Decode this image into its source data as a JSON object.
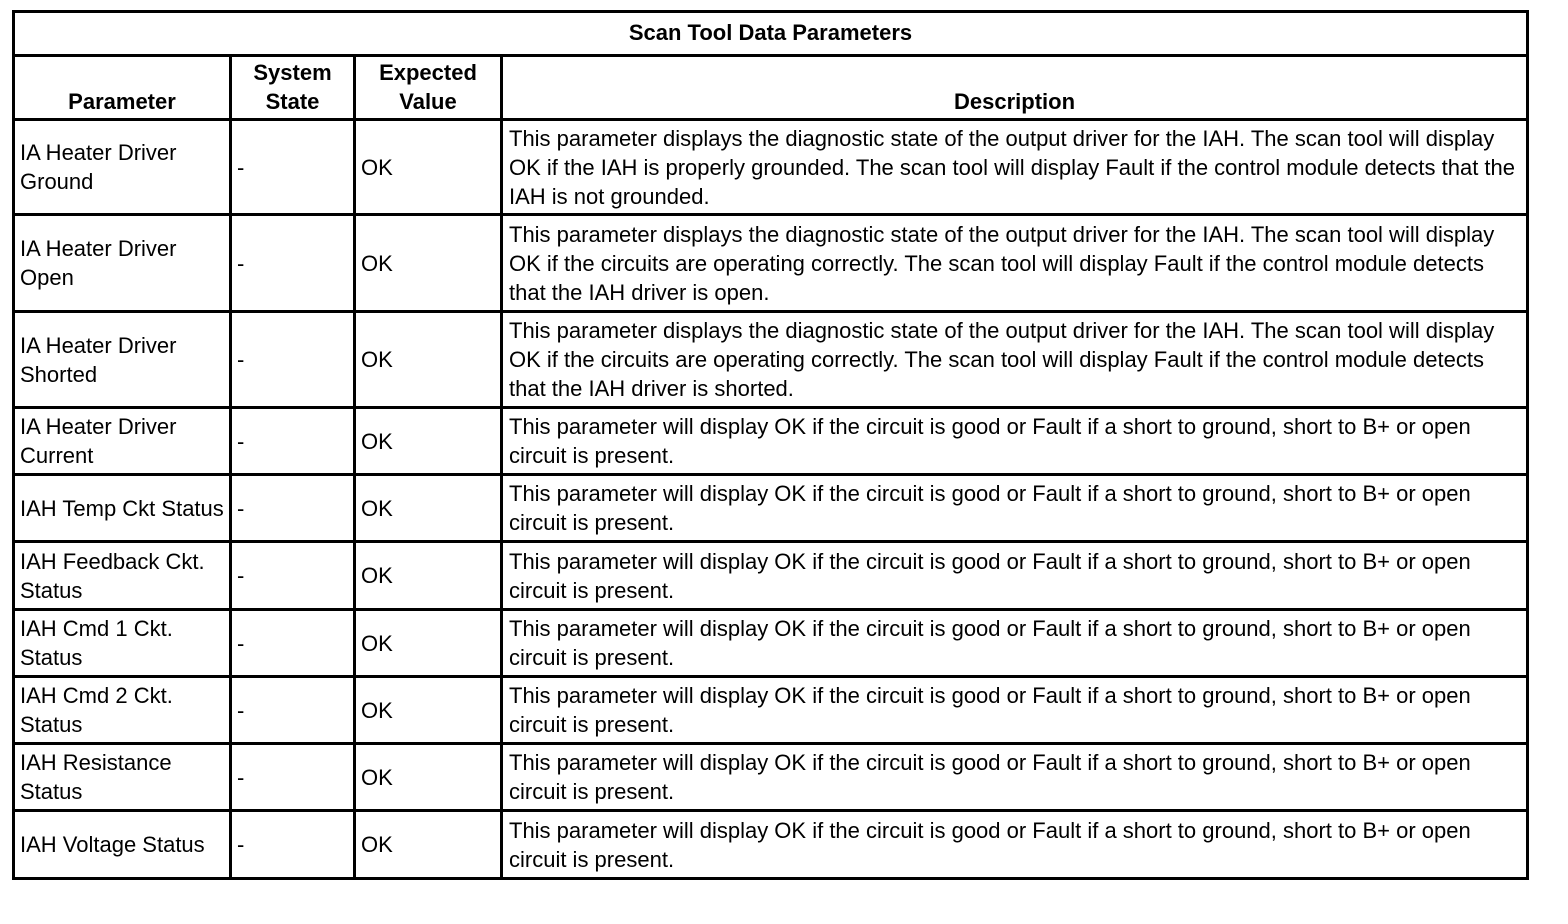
{
  "title": "Scan Tool Data Parameters",
  "headers": {
    "parameter": "Parameter",
    "system_state": "System State",
    "expected_value": "Expected Value",
    "description": "Description"
  },
  "rows": [
    {
      "parameter": "IA Heater Driver Ground",
      "system_state": "-",
      "expected_value": "OK",
      "description": "This parameter displays the diagnostic state of the output driver for the IAH. The scan tool will display OK if the IAH is properly grounded. The scan tool will display Fault if the control module detects that the IAH is not grounded."
    },
    {
      "parameter": "IA Heater Driver Open",
      "system_state": "-",
      "expected_value": "OK",
      "description": "This parameter displays the diagnostic state of the output driver for the IAH. The scan tool will display OK if the circuits are operating correctly. The scan tool will display Fault if the control module detects that the IAH driver is open."
    },
    {
      "parameter": "IA Heater Driver Shorted",
      "system_state": "-",
      "expected_value": "OK",
      "description": "This parameter displays the diagnostic state of the output driver for the IAH. The scan tool will display OK if the circuits are operating correctly. The scan tool will display Fault if the control module detects that the IAH driver is shorted."
    },
    {
      "parameter": "IA Heater Driver Current",
      "system_state": "-",
      "expected_value": "OK",
      "description": "This parameter will display OK if the circuit is good or Fault if a short to ground, short to B+ or open circuit is present."
    },
    {
      "parameter": "IAH Temp Ckt Status",
      "system_state": "-",
      "expected_value": "OK",
      "description": "This parameter will display OK if the circuit is good or Fault if a short to ground, short to B+ or open circuit is present."
    },
    {
      "parameter": "IAH Feedback Ckt. Status",
      "system_state": "-",
      "expected_value": "OK",
      "description": "This parameter will display OK if the circuit is good or Fault if a short to ground, short to B+ or open circuit is present."
    },
    {
      "parameter": "IAH Cmd 1 Ckt. Status",
      "system_state": "-",
      "expected_value": "OK",
      "description": "This parameter will display OK if the circuit is good or Fault if a short to ground, short to B+ or open circuit is present."
    },
    {
      "parameter": "IAH Cmd 2 Ckt. Status",
      "system_state": "-",
      "expected_value": "OK",
      "description": "This parameter will display OK if the circuit is good or Fault if a short to ground, short to B+ or open circuit is present."
    },
    {
      "parameter": "IAH Resistance Status",
      "system_state": "-",
      "expected_value": "OK",
      "description": "This parameter will display OK if the circuit is good or Fault if a short to ground, short to B+ or open circuit is present."
    },
    {
      "parameter": "IAH Voltage Status",
      "system_state": "-",
      "expected_value": "OK",
      "description": "This parameter will display OK if the circuit is good or Fault if a short to ground, short to B+ or open circuit is present."
    }
  ]
}
